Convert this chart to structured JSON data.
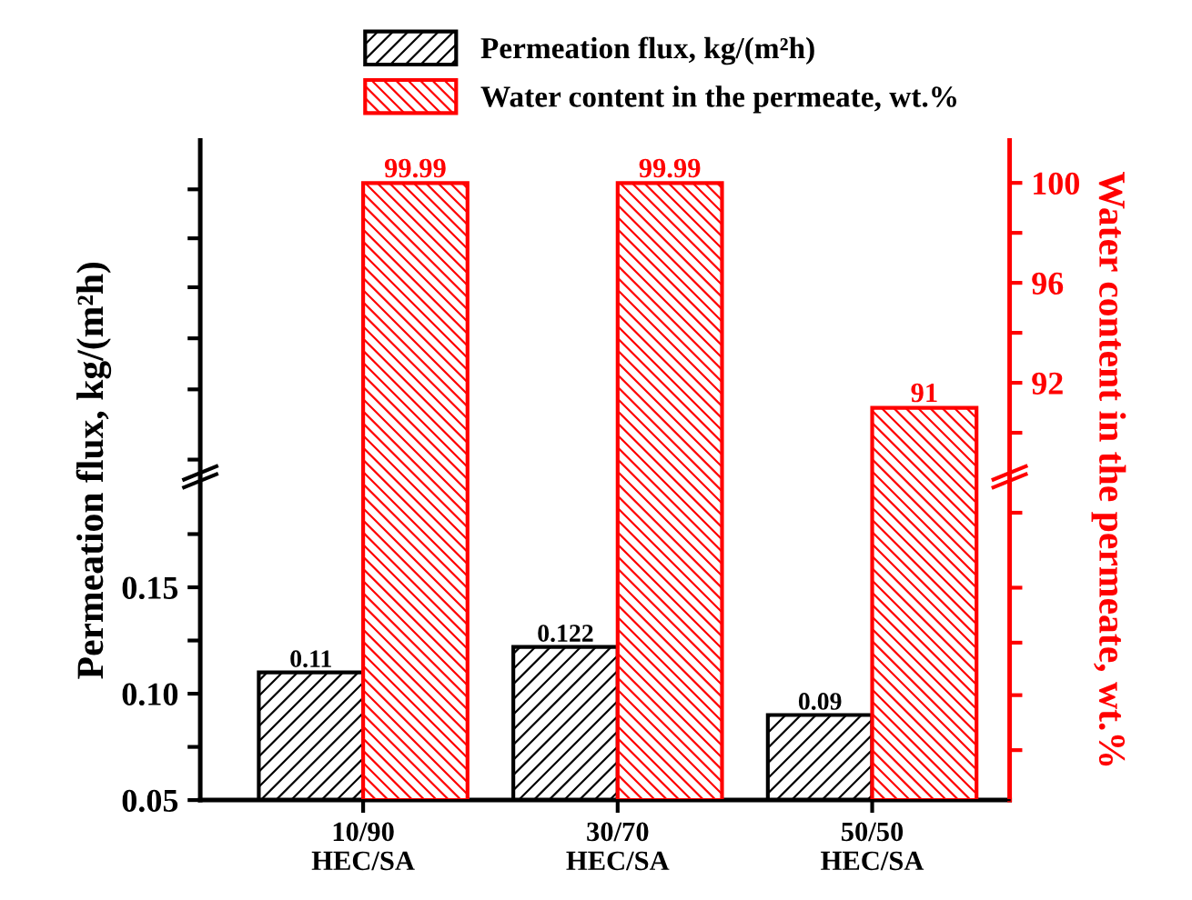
{
  "chart_data": {
    "type": "bar",
    "categories": [
      "10/90\nHEC/SA",
      "30/70\nHEC/SA",
      "50/50\nHEC/SA"
    ],
    "ylabel": "Permeation flux, kg/(m²h)",
    "y2label": "Water content in the permeate, wt.%",
    "series": [
      {
        "name": "Permeation flux, kg/(m²h)",
        "color": "#000000",
        "values": [
          0.11,
          0.122,
          0.09
        ]
      },
      {
        "name": "Water content in the permeate, wt.%",
        "color": "#ff0000",
        "values": [
          99.99,
          99.99,
          91
        ],
        "axis": "y2"
      }
    ],
    "ylim": [
      0.05,
      0.36
    ],
    "yticks": [
      0.05,
      {
        "value": 0.075,
        "label": null
      },
      {
        "value": 0.1,
        "label": "0.10"
      },
      {
        "value": 0.125,
        "label": null
      },
      0.15,
      {
        "value": 0.175,
        "label": null
      },
      {
        "value": 0.21,
        "label": null
      },
      {
        "value": 0.243,
        "label": null
      },
      {
        "value": 0.267,
        "label": null
      },
      {
        "value": 0.291,
        "label": null
      },
      {
        "value": 0.314,
        "label": null
      },
      {
        "value": 0.337,
        "label": null
      }
    ],
    "y2lim": [
      75.3,
      101.7
    ],
    "y2ticks": [
      {
        "value": 77.3,
        "label": null
      },
      {
        "value": 79.5,
        "label": null
      },
      {
        "value": 81.6,
        "label": null
      },
      {
        "value": 83.8,
        "label": null
      },
      {
        "value": 86.8,
        "label": null
      },
      {
        "value": 90,
        "label": null
      },
      92,
      {
        "value": 94,
        "label": null
      },
      96,
      {
        "value": 98,
        "label": null
      },
      100
    ],
    "data_labels": true,
    "legend": "top",
    "grid": false
  }
}
